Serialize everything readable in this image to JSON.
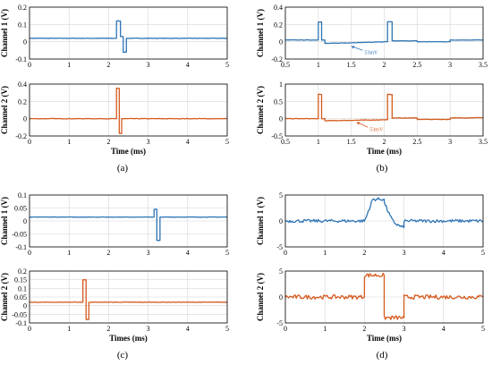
{
  "figure": {
    "captions": [
      "(a)",
      "(b)",
      "(c)",
      "(d)"
    ]
  },
  "colors": {
    "channel1": "#2e74b5",
    "channel2": "#d55a1e",
    "grid": "#d6d6d6"
  },
  "chart_data": [
    {
      "id": "a1",
      "type": "line",
      "caption": "(a)",
      "grid": true,
      "ylabel": "Channel 1 (V)",
      "xlabel": "",
      "xlim": [
        0,
        5
      ],
      "ylim": [
        -0.1,
        0.2
      ],
      "xticks": [
        0,
        1,
        2,
        3,
        4,
        5
      ],
      "yticks": [
        -0.1,
        0,
        0.1,
        0.2
      ],
      "ytick_labels": [
        "-0.1",
        "0",
        "0.1",
        "0.2"
      ],
      "series": [
        {
          "color": "#2e74b5",
          "noise": 0.004,
          "x": [
            0,
            2.2,
            2.2,
            2.3,
            2.3,
            2.37,
            2.37,
            2.45,
            2.45,
            5
          ],
          "y": [
            0.02,
            0.02,
            0.12,
            0.12,
            0.03,
            0.03,
            -0.06,
            -0.06,
            0.02,
            0.02
          ]
        }
      ]
    },
    {
      "id": "a2",
      "type": "line",
      "caption": "(a)",
      "grid": true,
      "ylabel": "Channel 2 (V)",
      "xlabel": "Time (ms)",
      "xlim": [
        0,
        5
      ],
      "ylim": [
        -0.2,
        0.4
      ],
      "xticks": [
        0,
        1,
        2,
        3,
        4,
        5
      ],
      "yticks": [
        -0.2,
        0,
        0.2,
        0.4
      ],
      "ytick_labels": [
        "-0.2",
        "0",
        "0.2",
        "0.4"
      ],
      "series": [
        {
          "color": "#d55a1e",
          "noise": 0.005,
          "x": [
            0,
            2.2,
            2.2,
            2.27,
            2.27,
            2.33,
            2.33,
            5
          ],
          "y": [
            0,
            0,
            0.35,
            0.35,
            -0.17,
            -0.17,
            0,
            0
          ]
        }
      ]
    },
    {
      "id": "b1",
      "type": "line",
      "caption": "(b)",
      "grid": true,
      "ylabel": "Channel 1 (V)",
      "xlabel": "",
      "xlim": [
        0.5,
        3.5
      ],
      "ylim": [
        -0.2,
        0.4
      ],
      "xticks": [
        0.5,
        1,
        1.5,
        2,
        2.5,
        3,
        3.5
      ],
      "yticks": [
        -0.2,
        0,
        0.2,
        0.4
      ],
      "ytick_labels": [
        "-0.2",
        "0",
        "0.2",
        "0.4"
      ],
      "annotation": {
        "text": "53mV",
        "x": 1.7,
        "y": -0.12,
        "arrow_to_x": 1.5,
        "arrow_to_y": -0.05
      },
      "series": [
        {
          "color": "#2e74b5",
          "noise": 0.004,
          "x": [
            0.5,
            1.0,
            1.0,
            1.05,
            1.05,
            1.1,
            1.1,
            2.05,
            2.05,
            2.12,
            2.12,
            2.5,
            2.5,
            3.0,
            3.0,
            3.5
          ],
          "y": [
            0.02,
            0.02,
            0.23,
            0.23,
            0.02,
            0.02,
            -0.02,
            0,
            0.23,
            0.23,
            0.01,
            0.01,
            0,
            0,
            0.02,
            0.02
          ]
        }
      ]
    },
    {
      "id": "b2",
      "type": "line",
      "caption": "(b)",
      "grid": true,
      "ylabel": "Channel 2 (V)",
      "xlabel": "Time (ms)",
      "xlim": [
        0.5,
        3.5
      ],
      "ylim": [
        -0.5,
        1.0
      ],
      "xticks": [
        0.5,
        1,
        1.5,
        2,
        2.5,
        3,
        3.5
      ],
      "yticks": [
        -0.5,
        0,
        0.5,
        1
      ],
      "ytick_labels": [
        "-0.5",
        "0",
        "0.5",
        "1"
      ],
      "annotation": {
        "text": "53mV",
        "x": 1.78,
        "y": -0.3,
        "arrow_to_x": 1.58,
        "arrow_to_y": -0.1
      },
      "series": [
        {
          "color": "#d55a1e",
          "noise": 0.005,
          "x": [
            0.5,
            1.0,
            1.0,
            1.05,
            1.05,
            1.1,
            1.1,
            2.05,
            2.05,
            2.12,
            2.12,
            2.5,
            2.5,
            3.0,
            3.0,
            3.5
          ],
          "y": [
            0,
            0,
            0.7,
            0.7,
            0,
            0,
            -0.06,
            -0.03,
            0.7,
            0.7,
            0.02,
            0.02,
            -0.02,
            -0.02,
            0.02,
            0.03
          ]
        }
      ]
    },
    {
      "id": "c1",
      "type": "line",
      "caption": "(c)",
      "grid": true,
      "ylabel": "Channel 1 (V)",
      "xlabel": "",
      "xlim": [
        0,
        5
      ],
      "ylim": [
        -0.1,
        0.1
      ],
      "xticks": [
        0,
        1,
        2,
        3,
        4,
        5
      ],
      "yticks": [
        -0.1,
        -0.05,
        0,
        0.05,
        0.1
      ],
      "ytick_labels": [
        "-0.1",
        "-0.05",
        "0",
        "0.05",
        "0.1"
      ],
      "series": [
        {
          "color": "#2e74b5",
          "noise": 0.003,
          "x": [
            0,
            3.15,
            3.15,
            3.22,
            3.22,
            3.3,
            3.3,
            5
          ],
          "y": [
            0.015,
            0.015,
            0.045,
            0.045,
            -0.075,
            -0.075,
            0.015,
            0.015
          ]
        }
      ]
    },
    {
      "id": "c2",
      "type": "line",
      "caption": "(c)",
      "grid": true,
      "ylabel": "Channel 2 (V)",
      "xlabel": "Times (ms)",
      "xlim": [
        0,
        5
      ],
      "ylim": [
        -0.1,
        0.2
      ],
      "xticks": [
        0,
        1,
        2,
        3,
        4,
        5
      ],
      "yticks": [
        -0.1,
        -0.05,
        0,
        0.05,
        0.1,
        0.15,
        0.2
      ],
      "ytick_labels": [
        "-0.1",
        "-0.05",
        "0",
        "0.05",
        "0.1",
        "0.15",
        "0.2"
      ],
      "series": [
        {
          "color": "#d55a1e",
          "noise": 0.004,
          "x": [
            0,
            1.35,
            1.35,
            1.43,
            1.43,
            1.5,
            1.5,
            5
          ],
          "y": [
            0.02,
            0.02,
            0.15,
            0.15,
            -0.08,
            -0.08,
            0.02,
            0.02
          ]
        }
      ]
    },
    {
      "id": "d1",
      "type": "line",
      "caption": "(d)",
      "grid": true,
      "ylabel": "Channel 1 (V)",
      "xlabel": "",
      "xlim": [
        0,
        5
      ],
      "ylim": [
        -5,
        5
      ],
      "xticks": [
        0,
        1,
        2,
        3,
        4,
        5
      ],
      "yticks": [
        -5,
        0,
        5
      ],
      "ytick_labels": [
        "-5",
        "0",
        "5"
      ],
      "series": [
        {
          "color": "#2e74b5",
          "noise": 0.03,
          "x": [
            0,
            2.0,
            2.05,
            2.1,
            2.15,
            2.2,
            2.3,
            2.4,
            2.5,
            2.5,
            2.6,
            2.7,
            2.8,
            2.9,
            3.0,
            3.0,
            5
          ],
          "y": [
            0,
            0,
            0.8,
            2.0,
            2.8,
            4.1,
            4.2,
            4.2,
            4.2,
            3.6,
            1.8,
            0.2,
            -0.6,
            -1.0,
            -1.3,
            0,
            0
          ]
        }
      ]
    },
    {
      "id": "d2",
      "type": "line",
      "caption": "(d)",
      "grid": true,
      "ylabel": "Channel 2 (V)",
      "xlabel": "Time (ms)",
      "xlim": [
        0,
        5
      ],
      "ylim": [
        -5,
        5
      ],
      "xticks": [
        0,
        1,
        2,
        3,
        4,
        5
      ],
      "yticks": [
        -5,
        0,
        5
      ],
      "ytick_labels": [
        "-5",
        "0",
        "5"
      ],
      "series": [
        {
          "color": "#d55a1e",
          "noise": 0.04,
          "x": [
            0,
            2.0,
            2.0,
            2.5,
            2.5,
            3.0,
            3.0,
            5
          ],
          "y": [
            0,
            0,
            4.2,
            4.2,
            -4.0,
            -4.0,
            0,
            0
          ]
        }
      ]
    }
  ]
}
